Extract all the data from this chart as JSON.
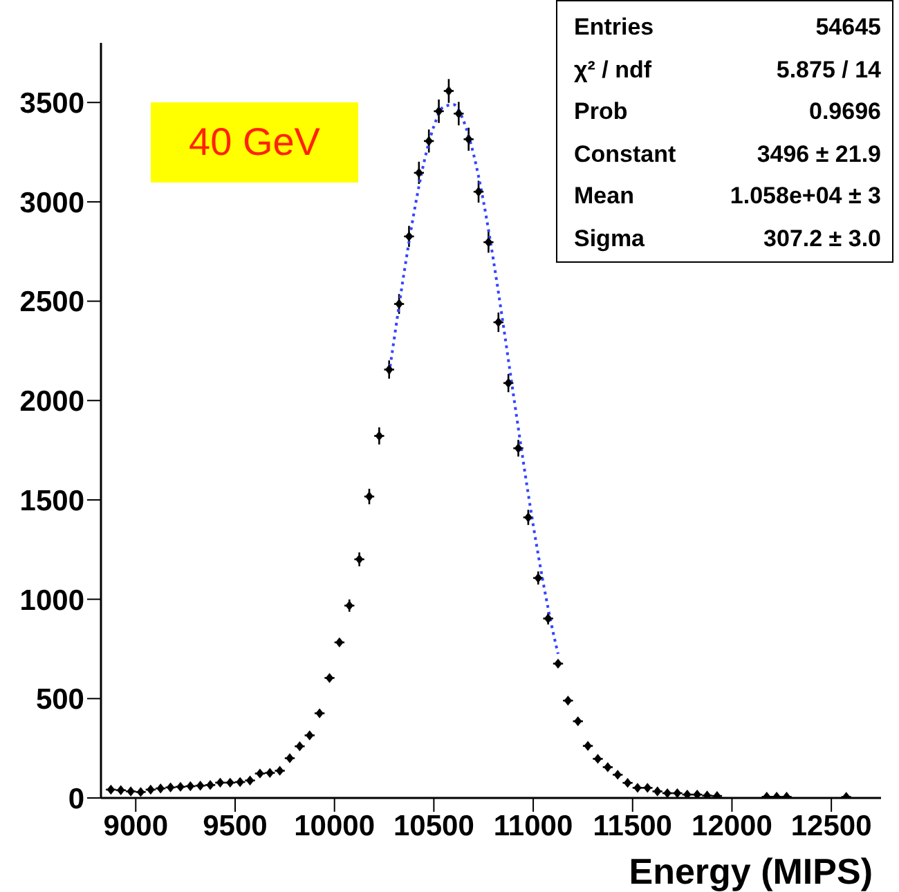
{
  "chart_data": {
    "type": "scatter",
    "xlabel": "Energy (MIPS)",
    "xlim": [
      8825,
      12750
    ],
    "ylim": [
      0,
      3800
    ],
    "xticks": [
      9000,
      9500,
      10000,
      10500,
      11000,
      11500,
      12000,
      12500
    ],
    "yticks": [
      0,
      500,
      1000,
      1500,
      2000,
      2500,
      3000,
      3500
    ],
    "grid": false,
    "legend": false,
    "annotations": [
      "40 GeV",
      "Entries",
      "54645",
      "χ² / ndf",
      "5.875 / 14",
      "Prob",
      "0.9696",
      "Constant",
      "3496 ± 21.9",
      "Mean",
      "1.058e+04 ± 3",
      "Sigma",
      "307.2 ± 3.0"
    ],
    "series": [
      {
        "color": "#000000",
        "marker": "diamond",
        "x": [
          8875,
          8925,
          8975,
          9025,
          9075,
          9125,
          9175,
          9225,
          9275,
          9325,
          9375,
          9425,
          9475,
          9525,
          9575,
          9625,
          9675,
          9725,
          9775,
          9825,
          9875,
          9925,
          9975,
          10025,
          10075,
          10125,
          10175,
          10225,
          10275,
          10325,
          10375,
          10425,
          10475,
          10525,
          10575,
          10625,
          10675,
          10725,
          10775,
          10825,
          10875,
          10925,
          10975,
          11025,
          11075,
          11125,
          11175,
          11225,
          11275,
          11325,
          11375,
          11425,
          11475,
          11525,
          11575,
          11625,
          11675,
          11725,
          11775,
          11825,
          11875,
          11925,
          12175,
          12225,
          12275,
          12575
        ],
        "values": [
          42,
          39,
          33,
          30,
          42,
          48,
          53,
          56,
          59,
          62,
          65,
          77,
          77,
          80,
          88,
          123,
          126,
          137,
          200,
          260,
          315,
          426,
          604,
          783,
          968,
          1201,
          1517,
          1822,
          2156,
          2486,
          2826,
          3146,
          3306,
          3456,
          3558,
          3444,
          3315,
          3051,
          2797,
          2394,
          2088,
          1760,
          1412,
          1107,
          903,
          676,
          490,
          386,
          262,
          197,
          155,
          117,
          76,
          51,
          51,
          33,
          24,
          24,
          17,
          17,
          12,
          10,
          6,
          6,
          6,
          5
        ],
        "errors": [
          null,
          null,
          null,
          null,
          null,
          null,
          null,
          null,
          null,
          null,
          null,
          null,
          null,
          null,
          null,
          null,
          null,
          null,
          null,
          null,
          null,
          null,
          null,
          null,
          31,
          35,
          39,
          43,
          46,
          50,
          53,
          56,
          58,
          59,
          60,
          59,
          58,
          55,
          53,
          49,
          46,
          42,
          38,
          33,
          30,
          null,
          null,
          null,
          null,
          null,
          null,
          null,
          null,
          null,
          null,
          null,
          null,
          null,
          null,
          null,
          null,
          null,
          null,
          null,
          null,
          null
        ],
        "xerrors": [
          25,
          25,
          25,
          25,
          25,
          25,
          25,
          25,
          25,
          25,
          25,
          25,
          25,
          25,
          25,
          25,
          25,
          25,
          25,
          25,
          25,
          25,
          25,
          25,
          25,
          25,
          25,
          25,
          25,
          25,
          25,
          25,
          25,
          25,
          25,
          25,
          25,
          25,
          25,
          25,
          25,
          25,
          25,
          25,
          25,
          25,
          25,
          25,
          25,
          25,
          25,
          25,
          25,
          25,
          25,
          25,
          25,
          25,
          25,
          25,
          25,
          25,
          25,
          25,
          25,
          25
        ]
      },
      {
        "type": "line",
        "color": "#3344ff",
        "line_style": "dotted",
        "x": [
          10275,
          10300,
          10350,
          10400,
          10450,
          10500,
          10550,
          10600,
          10650,
          10700,
          10750,
          10800,
          10850,
          10900,
          10950,
          11000,
          11050,
          11100,
          11125
        ],
        "values": [
          2136,
          2308,
          2642,
          2945,
          3197,
          3380,
          3479,
          3489,
          3406,
          3239,
          3000,
          2705,
          2376,
          2032,
          1693,
          1373,
          1085,
          834,
          725
        ]
      }
    ]
  }
}
